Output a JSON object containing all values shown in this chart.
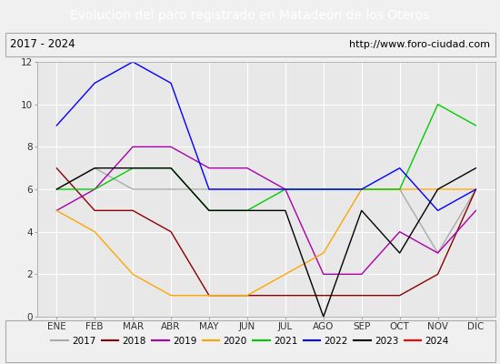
{
  "title": "Evolucion del paro registrado en Matadeón de los Oteros",
  "subtitle_left": "2017 - 2024",
  "subtitle_right": "http://www.foro-ciudad.com",
  "x_labels": [
    "ENE",
    "FEB",
    "MAR",
    "ABR",
    "MAY",
    "JUN",
    "JUL",
    "AGO",
    "SEP",
    "OCT",
    "NOV",
    "DIC"
  ],
  "ylim": [
    0,
    12
  ],
  "yticks": [
    0,
    2,
    4,
    6,
    8,
    10,
    12
  ],
  "series": {
    "2017": {
      "color": "#aaaaaa",
      "values": [
        6,
        7,
        6,
        6,
        6,
        6,
        6,
        6,
        6,
        6,
        3,
        6
      ]
    },
    "2018": {
      "color": "#8b0000",
      "values": [
        7,
        5,
        5,
        4,
        1,
        1,
        1,
        1,
        1,
        1,
        2,
        6
      ]
    },
    "2019": {
      "color": "#aa00aa",
      "values": [
        5,
        6,
        8,
        8,
        7,
        7,
        6,
        2,
        2,
        4,
        3,
        5
      ]
    },
    "2020": {
      "color": "#ffa500",
      "values": [
        5,
        4,
        2,
        1,
        1,
        1,
        2,
        3,
        6,
        6,
        6,
        6
      ]
    },
    "2021": {
      "color": "#00cc00",
      "values": [
        6,
        6,
        7,
        7,
        5,
        5,
        6,
        6,
        6,
        6,
        10,
        9
      ]
    },
    "2022": {
      "color": "#0000ff",
      "values": [
        9,
        11,
        12,
        11,
        6,
        6,
        6,
        6,
        6,
        7,
        5,
        6
      ]
    },
    "2023": {
      "color": "#000000",
      "values": [
        6,
        7,
        7,
        7,
        5,
        5,
        5,
        0,
        5,
        3,
        6,
        7
      ]
    },
    "2024": {
      "color": "#ff0000",
      "values": [
        6,
        null,
        null,
        null,
        null,
        null,
        null,
        null,
        null,
        null,
        null,
        null
      ]
    }
  },
  "legend_order": [
    "2017",
    "2018",
    "2019",
    "2020",
    "2021",
    "2022",
    "2023",
    "2024"
  ],
  "title_bg": "#3366cc",
  "title_color": "#ffffff",
  "plot_bg": "#e8e8e8",
  "outer_bg": "#f0f0f0",
  "grid_color": "#ffffff",
  "title_fontsize": 10,
  "axis_fontsize": 7.5,
  "legend_fontsize": 7.5
}
